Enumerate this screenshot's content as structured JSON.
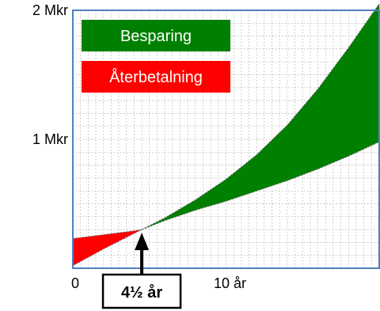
{
  "chart_data": {
    "type": "area",
    "title": "",
    "xlabel": "",
    "ylabel": "",
    "xlim": [
      0,
      20
    ],
    "ylim": [
      0,
      2
    ],
    "x_ticks": [
      {
        "value": 0,
        "label": "0"
      },
      {
        "value": 10,
        "label": "10 år"
      }
    ],
    "y_ticks": [
      {
        "value": 1,
        "label": "1 Mkr"
      },
      {
        "value": 2,
        "label": "2 Mkr"
      }
    ],
    "grid": true,
    "legend_position": "top-left",
    "x": [
      0,
      2,
      4,
      4.5,
      6,
      8,
      10,
      12,
      14,
      16,
      18,
      20
    ],
    "series": [
      {
        "name": "Besparing",
        "color": "#008000",
        "lower": [
          null,
          null,
          null,
          0.3,
          0.37,
          0.45,
          0.52,
          0.6,
          0.68,
          0.77,
          0.87,
          0.98
        ],
        "upper": [
          null,
          null,
          null,
          0.3,
          0.39,
          0.53,
          0.69,
          0.88,
          1.11,
          1.39,
          1.71,
          2.05
        ]
      },
      {
        "name": "Återbetalning",
        "color": "#ff0000",
        "lower": [
          0.02,
          0.15,
          0.27,
          0.3,
          null,
          null,
          null,
          null,
          null,
          null,
          null,
          null
        ],
        "upper": [
          0.23,
          0.26,
          0.29,
          0.3,
          null,
          null,
          null,
          null,
          null,
          null,
          null,
          null
        ]
      }
    ],
    "annotations": [
      {
        "text": "4½ år",
        "x": 4.5,
        "y": 0.3,
        "type": "arrow"
      }
    ]
  }
}
